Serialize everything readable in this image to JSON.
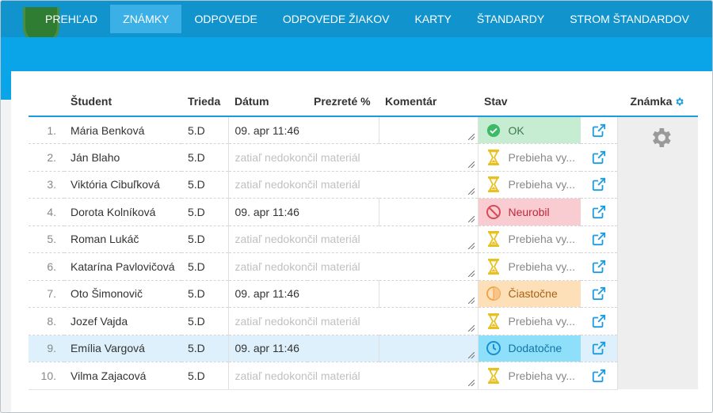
{
  "nav": {
    "items": [
      {
        "label": "PREHĽAD",
        "active": false
      },
      {
        "label": "ZNÁMKY",
        "active": true
      },
      {
        "label": "ODPOVEDE",
        "active": false
      },
      {
        "label": "ODPOVEDE ŽIAKOV",
        "active": false
      },
      {
        "label": "KARTY",
        "active": false
      },
      {
        "label": "ŠTANDARDY",
        "active": false
      },
      {
        "label": "STROM ŠTANDARDOV",
        "active": false
      }
    ]
  },
  "table": {
    "headers": {
      "num": "",
      "student": "Študent",
      "class": "Trieda",
      "date": "Dátum",
      "viewed": "Prezreté %",
      "comment": "Komentár",
      "status": "Stav",
      "grade": "Známka"
    },
    "rows": [
      {
        "num": "1.",
        "student": "Mária Benková",
        "class": "5.D",
        "date": "09. apr 11:46",
        "viewed": "",
        "comment": "",
        "status": "OK",
        "status_type": "ok"
      },
      {
        "num": "2.",
        "student": "Ján Blaho",
        "class": "5.D",
        "date": "zatiaľ nedokončil materiál",
        "viewed": "",
        "comment": "",
        "status": "Prebieha vy...",
        "status_type": "progress"
      },
      {
        "num": "3.",
        "student": "Viktória Cibuľková",
        "class": "5.D",
        "date": "zatiaľ nedokončil materiál",
        "viewed": "",
        "comment": "",
        "status": "Prebieha vy...",
        "status_type": "progress"
      },
      {
        "num": "4.",
        "student": "Dorota Kolníková",
        "class": "5.D",
        "date": "09. apr 11:46",
        "viewed": "",
        "comment": "",
        "status": "Neurobil",
        "status_type": "bad"
      },
      {
        "num": "5.",
        "student": "Roman Lukáč",
        "class": "5.D",
        "date": "zatiaľ nedokončil materiál",
        "viewed": "",
        "comment": "",
        "status": "Prebieha vy...",
        "status_type": "progress"
      },
      {
        "num": "6.",
        "student": "Katarína Pavlovičová",
        "class": "5.D",
        "date": "zatiaľ nedokončil materiál",
        "viewed": "",
        "comment": "",
        "status": "Prebieha vy...",
        "status_type": "progress"
      },
      {
        "num": "7.",
        "student": "Oto Šimonovič",
        "class": "5.D",
        "date": "09. apr 11:46",
        "viewed": "",
        "comment": "",
        "status": "Čiastočne",
        "status_type": "partial"
      },
      {
        "num": "8.",
        "student": "Jozef Vajda",
        "class": "5.D",
        "date": "zatiaľ nedokončil materiál",
        "viewed": "",
        "comment": "",
        "status": "Prebieha vy...",
        "status_type": "progress"
      },
      {
        "num": "9.",
        "student": "Emília Vargová",
        "class": "5.D",
        "date": "09. apr 11:46",
        "viewed": "",
        "comment": "",
        "status": "Dodatočne",
        "status_type": "extra"
      },
      {
        "num": "10.",
        "student": "Vilma Zajacová",
        "class": "5.D",
        "date": "zatiaľ nedokončil materiál",
        "viewed": "",
        "comment": "",
        "status": "Prebieha vy...",
        "status_type": "progress"
      }
    ],
    "highlighted_row": 9
  },
  "icons": {
    "ok": "check-circle-icon",
    "progress": "hourglass-icon",
    "bad": "ban-icon",
    "partial": "partial-circle-icon",
    "extra": "clock-icon",
    "link": "external-link-icon",
    "grade_settings": "gear-icon"
  },
  "colors": {
    "nav_bg": "#1194ce",
    "nav_active": "#3ab0e6",
    "accent": "#1b9be0",
    "ok": "#c6ecd2",
    "bad": "#f8ccd0",
    "partial": "#fde0b8",
    "extra": "#8ee0fa",
    "hourglass": "#e8c020"
  }
}
